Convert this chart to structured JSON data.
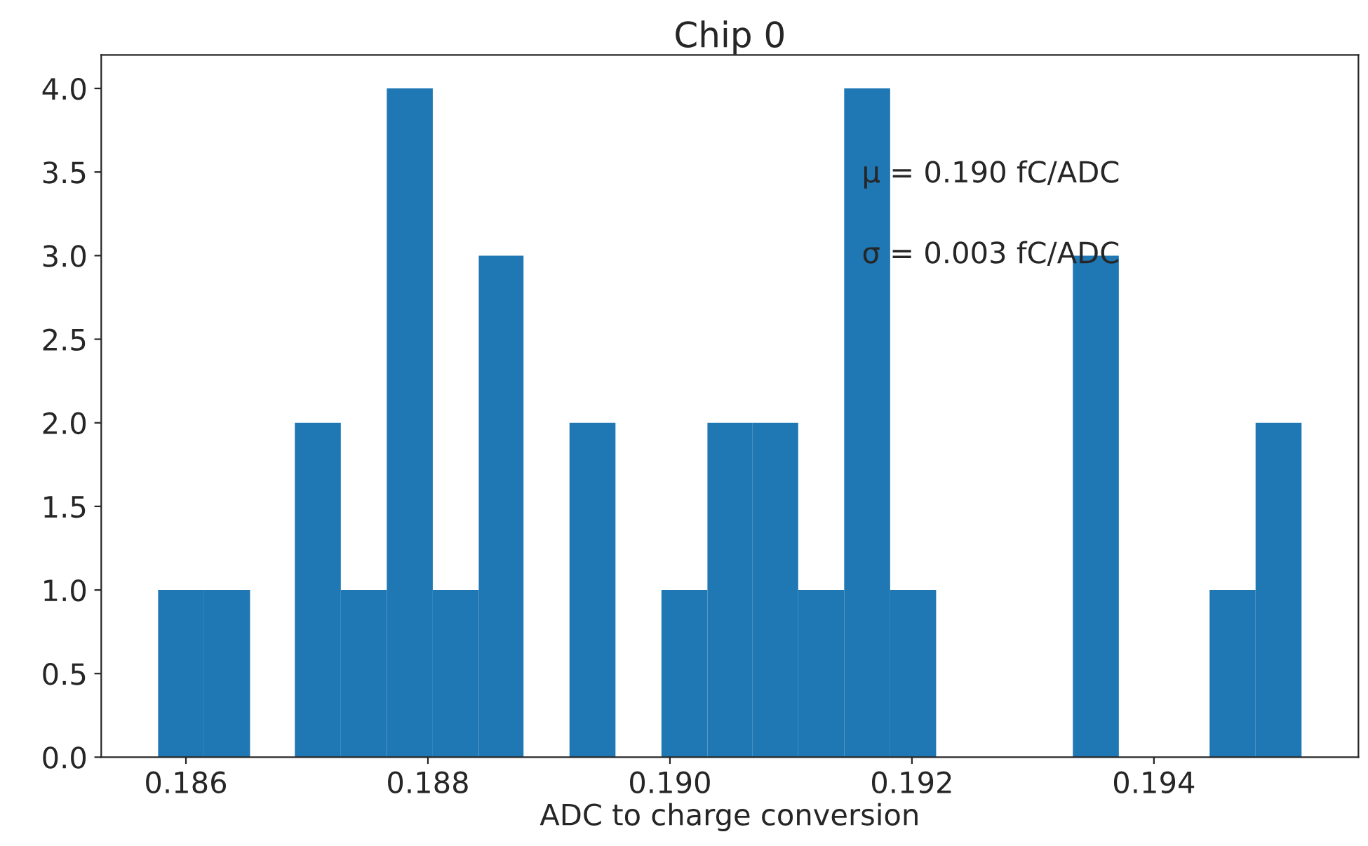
{
  "chart_data": {
    "type": "histogram",
    "title": "Chip 0",
    "xlabel": "ADC to charge conversion",
    "bins": [
      0.18577,
      0.18615,
      0.18653,
      0.1869,
      0.18728,
      0.18766,
      0.18804,
      0.18842,
      0.18879,
      0.18917,
      0.18955,
      0.18993,
      0.19031,
      0.19068,
      0.19106,
      0.19144,
      0.19182,
      0.1922,
      0.19333,
      0.19371,
      0.19446,
      0.19484,
      0.19522
    ],
    "values": [
      1,
      1,
      0,
      2,
      1,
      4,
      1,
      3,
      0,
      2,
      0,
      1,
      2,
      2,
      1,
      4,
      1,
      0,
      3,
      0,
      1,
      2
    ],
    "color": "#1f77b4",
    "xlim": [
      0.1853,
      0.19569
    ],
    "xticks": [
      {
        "value": 0.186,
        "label": "0.186"
      },
      {
        "value": 0.188,
        "label": "0.188"
      },
      {
        "value": 0.19,
        "label": "0.190"
      },
      {
        "value": 0.192,
        "label": "0.192"
      },
      {
        "value": 0.194,
        "label": "0.194"
      }
    ],
    "ylim": [
      0,
      4.2
    ],
    "yticks": [
      {
        "value": 0,
        "label": "0.0"
      },
      {
        "value": 0.5,
        "label": "0.5"
      },
      {
        "value": 1,
        "label": "1.0"
      },
      {
        "value": 1.5,
        "label": "1.5"
      },
      {
        "value": 2,
        "label": "2.0"
      },
      {
        "value": 2.5,
        "label": "2.5"
      },
      {
        "value": 3,
        "label": "3.0"
      },
      {
        "value": 3.5,
        "label": "3.5"
      },
      {
        "value": 4,
        "label": "4.0"
      }
    ],
    "annotations": [
      "μ = 0.190 fC/ADC",
      "σ = 0.003 fC/ADC"
    ],
    "grid": false,
    "legend": false
  }
}
